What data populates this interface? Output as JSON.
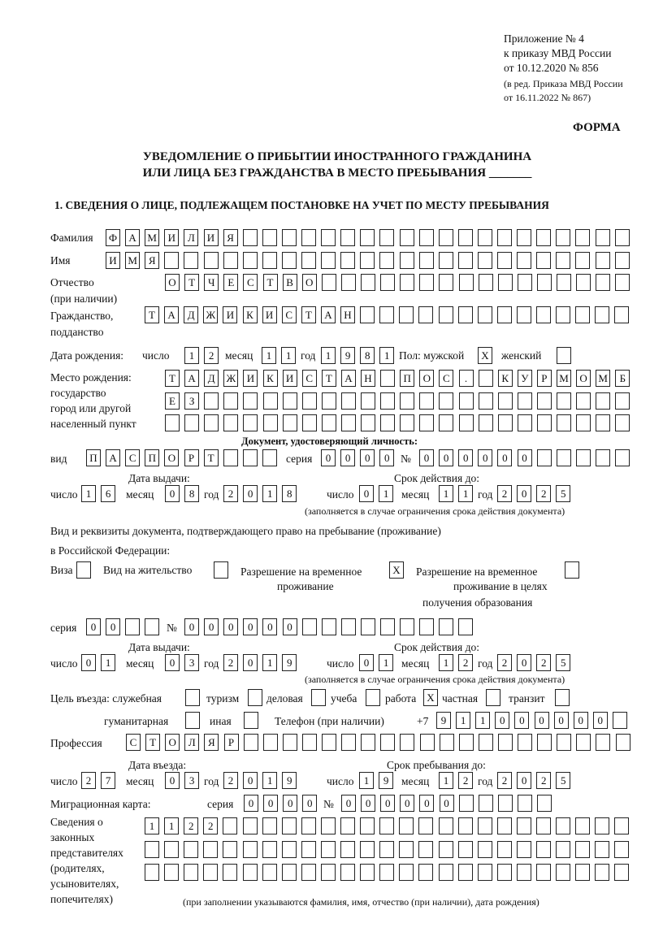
{
  "header": {
    "appendix_line1": "Приложение № 4",
    "appendix_line2": "к приказу МВД России",
    "appendix_line3": "от 10.12.2020 № 856",
    "amend_line1": "(в ред. Приказа МВД России",
    "amend_line2": "от 16.11.2022 № 867)",
    "form_label": "ФОРМА",
    "title_line1": "УВЕДОМЛЕНИЕ О ПРИБЫТИИ ИНОСТРАННОГО ГРАЖДАНИНА",
    "title_line2": "ИЛИ ЛИЦА БЕЗ ГРАЖДАНСТВА В МЕСТО ПРЕБЫВАНИЯ _______",
    "section1": "1. СВЕДЕНИЯ О ЛИЦЕ, ПОДЛЕЖАЩЕМ ПОСТАНОВКЕ НА УЧЕТ ПО МЕСТУ ПРЕБЫВАНИЯ"
  },
  "labels": {
    "surname": "Фамилия",
    "name": "Имя",
    "patronymic": "Отчество",
    "patronymic2": "(при наличии)",
    "citizenship": "Гражданство,",
    "citizenship2": "подданство",
    "birth_date": "Дата рождения:",
    "day": "число",
    "month": "месяц",
    "year": "год",
    "sex": "Пол: мужской",
    "female": "женский",
    "birthplace1": "Место рождения:",
    "birthplace2": "государство",
    "birthplace3": "город или другой",
    "birthplace4": "населенный пункт",
    "id_doc": "Документ, удостоверяющий личность:",
    "kind": "вид",
    "series": "серия",
    "number": "№",
    "issue_date": "Дата выдачи:",
    "valid_until": "Срок действия до:",
    "valid_note": "(заполняется в случае ограничения срока действия документа)",
    "right_doc1": "Вид и реквизиты документа, подтверждающего право на пребывание (проживание)",
    "right_doc2": "в Российской Федерации:",
    "visa": "Виза",
    "residence": "Вид на жительство",
    "temp1": "Разрешение на временное",
    "temp2": "проживание",
    "edu1": "Разрешение на временное",
    "edu2": "проживание в целях",
    "edu3": "получения образования",
    "purpose": "Цель въезда: служебная",
    "tourism": "туризм",
    "business": "деловая",
    "study": "учеба",
    "work": "работа",
    "private": "частная",
    "transit": "транзит",
    "humanitarian": "гуманитарная",
    "other": "иная",
    "phone": "Телефон (при наличии)",
    "phone_prefix": "+7",
    "profession": "Профессия",
    "entry_date": "Дата въезда:",
    "stay_until": "Срок пребывания до:",
    "migration_card": "Миграционная карта:",
    "reps1": "Сведения о",
    "reps2": "законных",
    "reps3": "представителях",
    "reps4": "(родителях,",
    "reps5": "усыновителях,",
    "reps6": "попечителях)",
    "reps_note": "(при заполнении указываются фамилия, имя, отчество (при наличии), дата рождения)"
  },
  "person": {
    "surname": "ФАМИЛИЯ",
    "name": "ИМЯ",
    "patronymic": "ОТЧЕСТВО",
    "citizenship": "ТАДЖИКИСТАН",
    "birth_day": "12",
    "birth_month": "11",
    "birth_year": "1981",
    "sex_male": "X",
    "sex_female": "",
    "birthplace1": "ТАДЖИКИСТАН ПОС. КУРМОМБ",
    "birthplace2": "ЕЗ",
    "birthplace3": ""
  },
  "id_document": {
    "kind": "ПАСПОРТ",
    "series": "0000",
    "number": "000000",
    "issue_day": "16",
    "issue_month": "08",
    "issue_year": "2018",
    "valid_day": "01",
    "valid_month": "11",
    "valid_year": "2025"
  },
  "right_document": {
    "visa": "",
    "residence": "",
    "temp_residence": "X",
    "temp_residence_edu": "",
    "series": "00",
    "number": "000000",
    "issue_day": "01",
    "issue_month": "03",
    "issue_year": "2019",
    "valid_day": "01",
    "valid_month": "12",
    "valid_year": "2025"
  },
  "purpose": {
    "official": "",
    "tourism": "",
    "business": "",
    "study": "",
    "work": "X",
    "private": "",
    "transit": "",
    "humanitarian": "",
    "other": ""
  },
  "phone": "911000000",
  "profession": "СТОЛЯР",
  "entry": {
    "day": "27",
    "month": "03",
    "year": "2019",
    "stay_day": "19",
    "stay_month": "12",
    "stay_year": "2025"
  },
  "migration_card": {
    "series": "0000",
    "number": "000000"
  },
  "representatives": {
    "line1": "1122",
    "line2": "",
    "line3": ""
  }
}
